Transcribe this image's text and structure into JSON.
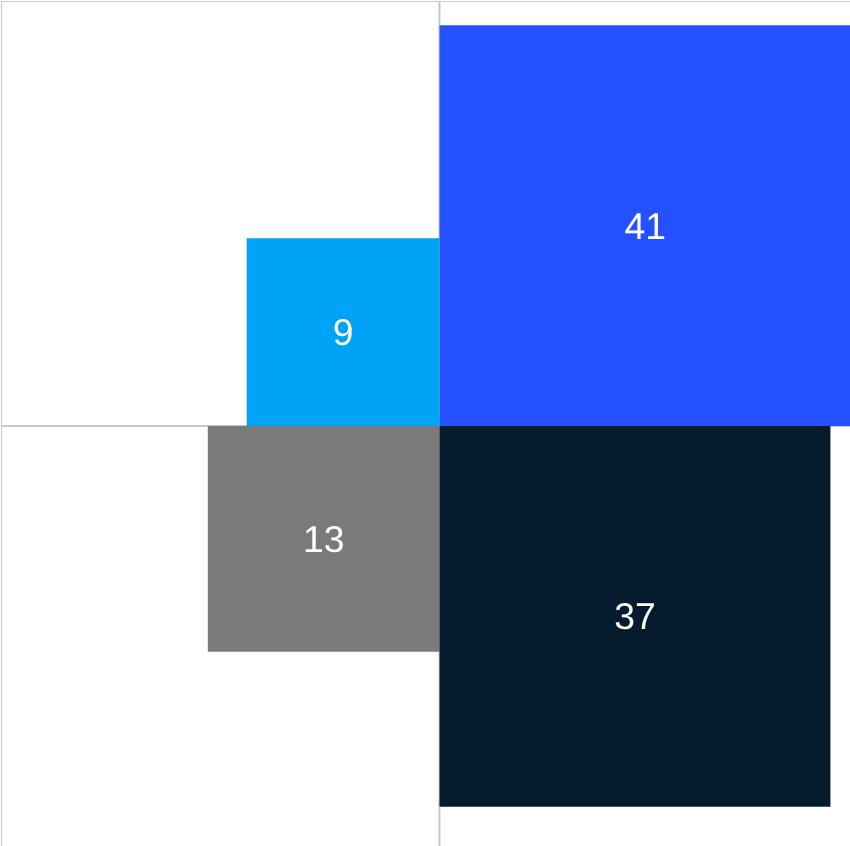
{
  "chart_data": {
    "type": "other",
    "categories": [
      null,
      null,
      null,
      null
    ],
    "values": [
      41,
      9,
      13,
      37
    ],
    "colors": [
      "#2550ff",
      "#00a3f5",
      "#7a7a7a",
      "#061c2e"
    ],
    "data_labels": true
  }
}
